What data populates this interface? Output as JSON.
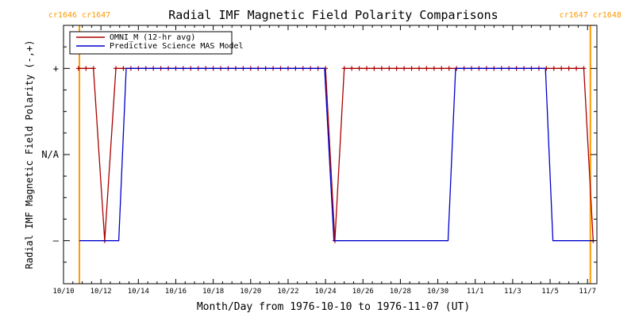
{
  "colors": {
    "omni": "#aa0000",
    "model": "#0000cc",
    "carrington": "#ff9900",
    "axis": "#000000"
  },
  "chart_data": {
    "type": "line",
    "title": "Radial IMF Magnetic Field Polarity Comparisons",
    "xlabel": "Month/Day from 1976-10-10 to 1976-11-07 (UT)",
    "ylabel": "Radial IMF Magnetic Field Polarity (-,+)",
    "xlim": [
      0,
      28.5
    ],
    "ylim": [
      -1.5,
      1.5
    ],
    "x_ticks": [
      {
        "x": 0,
        "label": "10/10"
      },
      {
        "x": 2,
        "label": "10/12"
      },
      {
        "x": 4,
        "label": "10/14"
      },
      {
        "x": 6,
        "label": "10/16"
      },
      {
        "x": 8,
        "label": "10/18"
      },
      {
        "x": 10,
        "label": "10/20"
      },
      {
        "x": 12,
        "label": "10/22"
      },
      {
        "x": 14,
        "label": "10/24"
      },
      {
        "x": 16,
        "label": "10/26"
      },
      {
        "x": 18,
        "label": "10/28"
      },
      {
        "x": 20,
        "label": "10/30"
      },
      {
        "x": 22,
        "label": "11/1"
      },
      {
        "x": 24,
        "label": "11/3"
      },
      {
        "x": 26,
        "label": "11/5"
      },
      {
        "x": 28,
        "label": "11/7"
      }
    ],
    "y_ticks": [
      {
        "y": 1,
        "label": "+"
      },
      {
        "y": 0,
        "label": "N/A"
      },
      {
        "y": -1,
        "label": "–"
      }
    ],
    "carrington": [
      {
        "x": 0.85,
        "labels": [
          "cr1646",
          "cr1647"
        ]
      },
      {
        "x": 28.15,
        "labels": [
          "cr1647",
          "cr1648"
        ]
      }
    ],
    "legend": {
      "placement": "top-left"
    },
    "series": [
      {
        "name": "OMNI_M (12-hr avg)",
        "color_key": "omni",
        "markers": true,
        "points": [
          [
            0.8,
            1
          ],
          [
            1.2,
            1
          ],
          [
            1.6,
            1
          ],
          [
            2.2,
            -1
          ],
          [
            2.8,
            1
          ],
          [
            3.2,
            1
          ],
          [
            3.6,
            1
          ],
          [
            4.0,
            1
          ],
          [
            4.4,
            1
          ],
          [
            4.8,
            1
          ],
          [
            5.2,
            1
          ],
          [
            5.6,
            1
          ],
          [
            6.0,
            1
          ],
          [
            6.4,
            1
          ],
          [
            6.8,
            1
          ],
          [
            7.2,
            1
          ],
          [
            7.6,
            1
          ],
          [
            8.0,
            1
          ],
          [
            8.4,
            1
          ],
          [
            8.8,
            1
          ],
          [
            9.2,
            1
          ],
          [
            9.6,
            1
          ],
          [
            10.0,
            1
          ],
          [
            10.4,
            1
          ],
          [
            10.8,
            1
          ],
          [
            11.2,
            1
          ],
          [
            11.6,
            1
          ],
          [
            12.0,
            1
          ],
          [
            12.4,
            1
          ],
          [
            12.8,
            1
          ],
          [
            13.2,
            1
          ],
          [
            13.6,
            1
          ],
          [
            14.0,
            1
          ],
          [
            14.5,
            -1
          ],
          [
            15.0,
            1
          ],
          [
            15.4,
            1
          ],
          [
            15.8,
            1
          ],
          [
            16.2,
            1
          ],
          [
            16.6,
            1
          ],
          [
            17.0,
            1
          ],
          [
            17.4,
            1
          ],
          [
            17.8,
            1
          ],
          [
            18.2,
            1
          ],
          [
            18.6,
            1
          ],
          [
            19.0,
            1
          ],
          [
            19.4,
            1
          ],
          [
            19.8,
            1
          ],
          [
            20.2,
            1
          ],
          [
            20.6,
            1
          ],
          [
            21.0,
            1
          ],
          [
            21.4,
            1
          ],
          [
            21.8,
            1
          ],
          [
            22.2,
            1
          ],
          [
            22.6,
            1
          ],
          [
            23.0,
            1
          ],
          [
            23.4,
            1
          ],
          [
            23.8,
            1
          ],
          [
            24.2,
            1
          ],
          [
            24.6,
            1
          ],
          [
            25.0,
            1
          ],
          [
            25.4,
            1
          ],
          [
            25.8,
            1
          ],
          [
            26.2,
            1
          ],
          [
            26.6,
            1
          ],
          [
            27.0,
            1
          ],
          [
            27.4,
            1
          ],
          [
            27.8,
            1
          ],
          [
            28.3,
            -1
          ]
        ]
      },
      {
        "name": "Predictive Science MAS Model",
        "color_key": "model",
        "markers": false,
        "points": [
          [
            0.85,
            -1
          ],
          [
            2.95,
            -1
          ],
          [
            3.35,
            1
          ],
          [
            13.95,
            1
          ],
          [
            14.45,
            -1
          ],
          [
            20.55,
            -1
          ],
          [
            20.95,
            1
          ],
          [
            25.75,
            1
          ],
          [
            26.15,
            -1
          ],
          [
            28.3,
            -1
          ]
        ]
      }
    ]
  }
}
